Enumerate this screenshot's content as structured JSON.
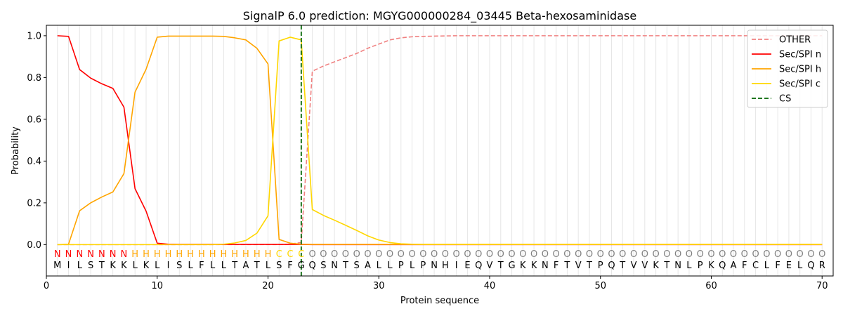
{
  "chart_data": {
    "type": "line",
    "title": "SignalP 6.0 prediction: MGYG000000284_03445 Beta-hexosaminidase",
    "xlabel": "Protein sequence",
    "ylabel": "Probability",
    "xlim": [
      0,
      71
    ],
    "ylim": [
      -0.15,
      1.05
    ],
    "xticks": [
      0,
      10,
      20,
      30,
      40,
      50,
      60,
      70
    ],
    "yticks": [
      0.0,
      0.2,
      0.4,
      0.6,
      0.8,
      1.0
    ],
    "xtick_labels": [
      "0",
      "10",
      "20",
      "30",
      "40",
      "50",
      "60",
      "70"
    ],
    "ytick_labels": [
      "0.0",
      "0.2",
      "0.4",
      "0.6",
      "0.8",
      "1.0"
    ],
    "legend_position": "top-right",
    "sequence": [
      "M",
      "I",
      "L",
      "S",
      "T",
      "K",
      "K",
      "L",
      "K",
      "L",
      "I",
      "S",
      "L",
      "F",
      "L",
      "L",
      "T",
      "A",
      "T",
      "L",
      "S",
      "F",
      "G",
      "Q",
      "S",
      "N",
      "T",
      "S",
      "A",
      "L",
      "L",
      "P",
      "L",
      "P",
      "N",
      "H",
      "I",
      "E",
      "Q",
      "V",
      "T",
      "G",
      "K",
      "K",
      "N",
      "F",
      "T",
      "V",
      "T",
      "P",
      "Q",
      "T",
      "V",
      "V",
      "K",
      "T",
      "N",
      "L",
      "P",
      "K",
      "Q",
      "A",
      "F",
      "C",
      "L",
      "F",
      "E",
      "L",
      "Q",
      "R"
    ],
    "state_labels": [
      "N",
      "N",
      "N",
      "N",
      "N",
      "N",
      "N",
      "H",
      "H",
      "H",
      "H",
      "H",
      "H",
      "H",
      "H",
      "H",
      "H",
      "H",
      "H",
      "H",
      "C",
      "C",
      "C",
      "O",
      "O",
      "O",
      "O",
      "O",
      "O",
      "O",
      "O",
      "O",
      "O",
      "O",
      "O",
      "O",
      "O",
      "O",
      "O",
      "O",
      "O",
      "O",
      "O",
      "O",
      "O",
      "O",
      "O",
      "O",
      "O",
      "O",
      "O",
      "O",
      "O",
      "O",
      "O",
      "O",
      "O",
      "O",
      "O",
      "O",
      "O",
      "O",
      "O",
      "O",
      "O",
      "O",
      "O",
      "O",
      "O",
      "O"
    ],
    "state_colors": {
      "N": "#ff0000",
      "H": "#ffa500",
      "C": "#ffd700",
      "O": "#808080"
    },
    "cleavage_site": 23,
    "series": [
      {
        "name": "OTHER",
        "color": "#f08080",
        "dash": true,
        "values": [
          0,
          0,
          0,
          0,
          0,
          0,
          0,
          0,
          0,
          0,
          0,
          0,
          0,
          0,
          0,
          0,
          0,
          0,
          0,
          0,
          0,
          0.003,
          0.01,
          0.83,
          0.855,
          0.875,
          0.895,
          0.915,
          0.94,
          0.96,
          0.98,
          0.99,
          0.995,
          0.997,
          0.998,
          0.999,
          1,
          1,
          1,
          1,
          1,
          1,
          1,
          1,
          1,
          1,
          1,
          1,
          1,
          1,
          1,
          1,
          1,
          1,
          1,
          1,
          1,
          1,
          1,
          1,
          1,
          1,
          1,
          1,
          1,
          1,
          1,
          1,
          1,
          1
        ]
      },
      {
        "name": "Sec/SPI n",
        "color": "#ff0000",
        "dash": false,
        "values": [
          1.0,
          0.997,
          0.838,
          0.797,
          0.77,
          0.748,
          0.658,
          0.268,
          0.16,
          0.007,
          0.002,
          0.001,
          0.001,
          0.001,
          0.001,
          0.001,
          0.001,
          0.001,
          0.001,
          0.001,
          0.001,
          0.001,
          0.001,
          0,
          0,
          0,
          0,
          0,
          0,
          0,
          0,
          0,
          0,
          0,
          0,
          0,
          0,
          0,
          0,
          0,
          0,
          0,
          0,
          0,
          0,
          0,
          0,
          0,
          0,
          0,
          0,
          0,
          0,
          0,
          0,
          0,
          0,
          0,
          0,
          0,
          0,
          0,
          0,
          0,
          0,
          0,
          0,
          0,
          0,
          0
        ]
      },
      {
        "name": "Sec/SPI h",
        "color": "#ffa500",
        "dash": false,
        "values": [
          0,
          0.002,
          0.162,
          0.2,
          0.228,
          0.252,
          0.34,
          0.73,
          0.84,
          0.993,
          0.998,
          0.998,
          0.998,
          0.998,
          0.998,
          0.997,
          0.99,
          0.98,
          0.94,
          0.865,
          0.025,
          0.007,
          0.002,
          0.001,
          0.001,
          0.001,
          0.001,
          0.001,
          0.001,
          0.001,
          0.001,
          0.001,
          0.001,
          0.001,
          0.001,
          0.001,
          0.001,
          0.001,
          0.001,
          0.001,
          0.001,
          0.001,
          0.001,
          0.001,
          0.001,
          0.001,
          0.001,
          0.001,
          0.001,
          0.001,
          0.001,
          0.001,
          0.001,
          0.001,
          0.001,
          0.001,
          0.001,
          0.001,
          0.001,
          0.001,
          0.001,
          0.001,
          0.001,
          0.001,
          0.001,
          0.001,
          0.001,
          0.001,
          0.001,
          0.001
        ]
      },
      {
        "name": "Sec/SPI c",
        "color": "#ffd700",
        "dash": false,
        "values": [
          0,
          0,
          0,
          0,
          0,
          0,
          0,
          0,
          0,
          0,
          0,
          0,
          0,
          0,
          0,
          0.002,
          0.008,
          0.02,
          0.055,
          0.138,
          0.975,
          0.993,
          0.98,
          0.168,
          0.14,
          0.117,
          0.093,
          0.068,
          0.042,
          0.022,
          0.01,
          0.004,
          0.002,
          0.001,
          0.001,
          0.001,
          0.001,
          0.001,
          0.001,
          0.001,
          0.001,
          0.001,
          0.001,
          0.001,
          0.001,
          0.001,
          0.001,
          0.001,
          0.001,
          0.001,
          0.001,
          0.001,
          0.001,
          0.001,
          0.001,
          0.001,
          0.001,
          0.001,
          0.001,
          0.001,
          0.001,
          0.001,
          0.001,
          0.001,
          0.001,
          0.001,
          0.001,
          0.001,
          0.001,
          0.001
        ]
      },
      {
        "name": "CS",
        "color": "#006400",
        "dash": true,
        "values": []
      }
    ]
  }
}
